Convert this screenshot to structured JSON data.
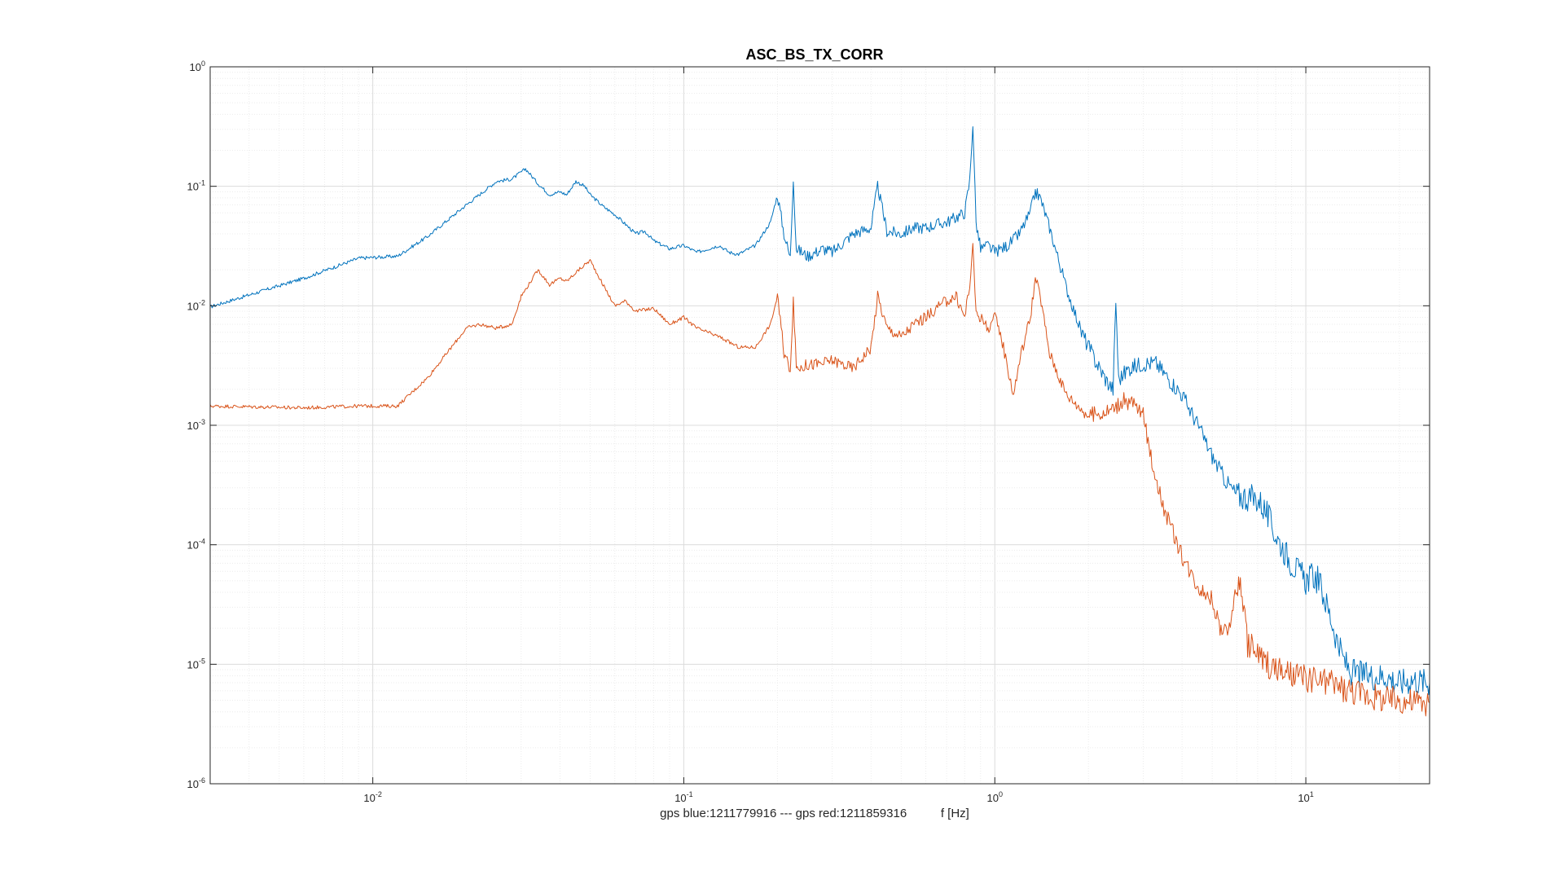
{
  "chart_data": {
    "type": "line",
    "title": "ASC_BS_TX_CORR",
    "xlabel": "gps blue:1211779916 --- gps red:1211859316          f [Hz]",
    "ylabel": "",
    "x_scale": "log",
    "y_scale": "log",
    "xlim": [
      0.003,
      25
    ],
    "ylim": [
      1e-06,
      1
    ],
    "grid": true,
    "legend": "none",
    "x_ticks": [
      {
        "value": 0.01,
        "base": "10",
        "exp": "-2"
      },
      {
        "value": 0.1,
        "base": "10",
        "exp": "-1"
      },
      {
        "value": 1,
        "base": "10",
        "exp": "0"
      },
      {
        "value": 10,
        "base": "10",
        "exp": "1"
      }
    ],
    "y_ticks": [
      {
        "value": 1,
        "base": "10",
        "exp": "0"
      },
      {
        "value": 0.1,
        "base": "10",
        "exp": "-1"
      },
      {
        "value": 0.01,
        "base": "10",
        "exp": "-2"
      },
      {
        "value": 0.001,
        "base": "10",
        "exp": "-3"
      },
      {
        "value": 0.0001,
        "base": "10",
        "exp": "-4"
      },
      {
        "value": 1e-05,
        "base": "10",
        "exp": "-5"
      },
      {
        "value": 1e-06,
        "base": "10",
        "exp": "-6"
      }
    ],
    "series": [
      {
        "color": "#0072bd",
        "x": [
          0.003,
          0.006,
          0.009,
          0.012,
          0.015,
          0.02,
          0.025,
          0.028,
          0.031,
          0.034,
          0.037,
          0.04,
          0.042,
          0.045,
          0.048,
          0.05,
          0.055,
          0.06,
          0.065,
          0.07,
          0.075,
          0.08,
          0.09,
          0.1,
          0.11,
          0.12,
          0.13,
          0.14,
          0.15,
          0.17,
          0.19,
          0.2,
          0.21,
          0.22,
          0.225,
          0.23,
          0.25,
          0.28,
          0.3,
          0.35,
          0.4,
          0.42,
          0.45,
          0.5,
          0.55,
          0.6,
          0.65,
          0.7,
          0.75,
          0.8,
          0.83,
          0.85,
          0.87,
          0.9,
          0.95,
          1.0,
          1.1,
          1.2,
          1.3,
          1.35,
          1.4,
          1.5,
          1.7,
          1.9,
          2.1,
          2.3,
          2.4,
          2.45,
          2.5,
          2.7,
          3.0,
          3.3,
          3.6,
          4.0,
          4.5,
          5.0,
          5.5,
          6.0,
          6.5,
          7.0,
          7.2,
          7.5,
          8.0,
          9.0,
          10.0,
          10.5,
          11.0,
          12.0,
          13.0,
          14.0,
          16.0,
          18.0,
          20.0,
          22.0,
          25.0
        ],
        "y": [
          0.0098,
          0.017,
          0.025,
          0.026,
          0.038,
          0.07,
          0.11,
          0.115,
          0.14,
          0.105,
          0.085,
          0.09,
          0.085,
          0.11,
          0.1,
          0.085,
          0.068,
          0.058,
          0.048,
          0.04,
          0.042,
          0.035,
          0.03,
          0.032,
          0.028,
          0.03,
          0.032,
          0.028,
          0.027,
          0.032,
          0.05,
          0.085,
          0.04,
          0.025,
          0.12,
          0.03,
          0.026,
          0.03,
          0.028,
          0.04,
          0.045,
          0.1,
          0.042,
          0.04,
          0.045,
          0.045,
          0.048,
          0.05,
          0.055,
          0.06,
          0.11,
          0.34,
          0.05,
          0.03,
          0.032,
          0.028,
          0.032,
          0.04,
          0.06,
          0.09,
          0.08,
          0.045,
          0.014,
          0.006,
          0.0035,
          0.0023,
          0.002,
          0.011,
          0.0024,
          0.003,
          0.0033,
          0.0033,
          0.0025,
          0.0018,
          0.001,
          0.00055,
          0.00035,
          0.00026,
          0.00025,
          0.00024,
          0.00022,
          0.00018,
          0.00012,
          7e-05,
          5e-05,
          5.5e-05,
          5e-05,
          2.5e-05,
          1.2e-05,
          8.5e-06,
          8e-06,
          8e-06,
          7e-06,
          7.5e-06,
          7e-06
        ]
      },
      {
        "color": "#d95319",
        "x": [
          0.003,
          0.006,
          0.009,
          0.012,
          0.015,
          0.02,
          0.022,
          0.025,
          0.028,
          0.03,
          0.034,
          0.037,
          0.04,
          0.042,
          0.045,
          0.048,
          0.05,
          0.055,
          0.06,
          0.065,
          0.07,
          0.08,
          0.09,
          0.1,
          0.11,
          0.13,
          0.15,
          0.17,
          0.19,
          0.2,
          0.21,
          0.22,
          0.225,
          0.23,
          0.25,
          0.28,
          0.3,
          0.35,
          0.4,
          0.42,
          0.45,
          0.5,
          0.55,
          0.6,
          0.65,
          0.7,
          0.75,
          0.8,
          0.83,
          0.85,
          0.87,
          0.9,
          0.95,
          1.0,
          1.05,
          1.1,
          1.15,
          1.2,
          1.3,
          1.35,
          1.4,
          1.5,
          1.7,
          2.0,
          2.3,
          2.6,
          2.8,
          3.0,
          3.2,
          3.5,
          4.0,
          4.5,
          5.0,
          5.3,
          5.6,
          6.0,
          6.2,
          6.5,
          7.0,
          8.0,
          9.0,
          10.0,
          12.0,
          14.0,
          16.0,
          18.0,
          20.0,
          22.0,
          25.0
        ],
        "y": [
          0.00145,
          0.0014,
          0.00145,
          0.00145,
          0.0025,
          0.0065,
          0.007,
          0.0065,
          0.007,
          0.012,
          0.02,
          0.015,
          0.017,
          0.016,
          0.019,
          0.022,
          0.024,
          0.015,
          0.01,
          0.011,
          0.009,
          0.0095,
          0.007,
          0.008,
          0.0065,
          0.0055,
          0.0045,
          0.0045,
          0.007,
          0.012,
          0.004,
          0.003,
          0.0115,
          0.003,
          0.0032,
          0.0033,
          0.0035,
          0.003,
          0.0045,
          0.012,
          0.0065,
          0.0055,
          0.007,
          0.008,
          0.0095,
          0.011,
          0.012,
          0.008,
          0.015,
          0.03,
          0.009,
          0.008,
          0.0065,
          0.008,
          0.0055,
          0.003,
          0.0018,
          0.0035,
          0.008,
          0.017,
          0.012,
          0.004,
          0.0018,
          0.0012,
          0.0013,
          0.0016,
          0.0015,
          0.0012,
          0.0005,
          0.0002,
          8e-05,
          4.5e-05,
          3.5e-05,
          2e-05,
          1.8e-05,
          4.5e-05,
          4.5e-05,
          1.5e-05,
          1.2e-05,
          9e-06,
          8e-06,
          7.5e-06,
          7e-06,
          6e-06,
          5.5e-06,
          5e-06,
          5e-06,
          4.8e-06,
          4.8e-06
        ]
      }
    ]
  }
}
